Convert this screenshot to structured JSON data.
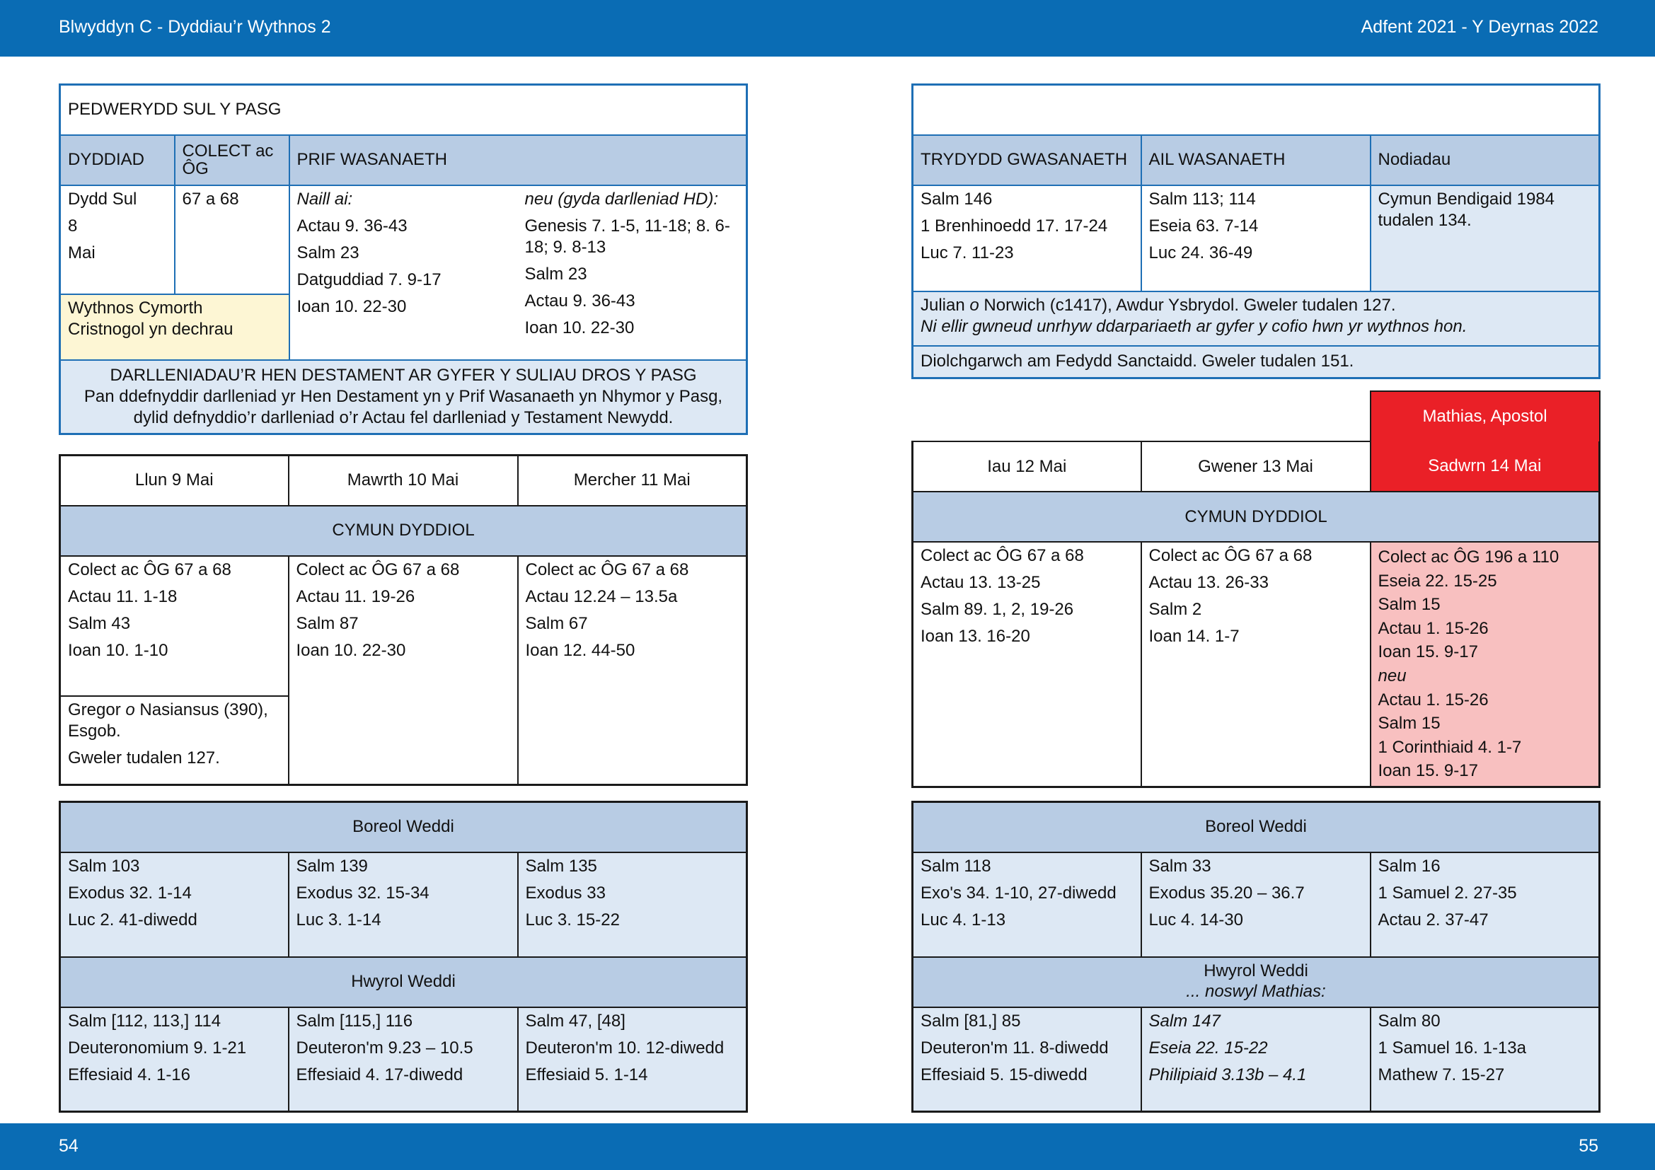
{
  "header": {
    "left": "Blwyddyn  C - Dyddiau’r Wythnos 2",
    "right": "Adfent 2021 - Y Deyrnas 2022"
  },
  "footer": {
    "left": "54",
    "right": "55"
  },
  "left": {
    "sunday": {
      "title": "PEDWERYDD SUL Y PASG",
      "col_dyddiad": "DYDDIAD",
      "col_colect": "COLECT ac ÔG",
      "col_prif": "PRIF WASANAETH",
      "date": [
        "Dydd Sul",
        "8",
        "Mai"
      ],
      "colect": "67 a 68",
      "naill_label": "Naill ai:",
      "naill": [
        "Actau 9. 36-43",
        "Salm 23",
        "Datguddiad 7. 9-17",
        "Ioan 10. 22-30"
      ],
      "neu_label": "neu (gyda darlleniad HD):",
      "neu": [
        "Genesis 7. 1-5, 11-18; 8. 6-18; 9. 8-13",
        "Salm 23",
        "Actau 9. 36-43",
        "Ioan 10. 22-30"
      ],
      "note": "Wythnos Cymorth Cristnogol yn dechrau",
      "dar_title": "DARLLENIADAU’R HEN DESTAMENT AR GYFER Y SULIAU DROS Y PASG",
      "dar_text": "Pan ddefnyddir darlleniad yr Hen Destament yn y Prif Wasanaeth yn Nhymor y Pasg, dylid defnyddio’r darlleniad o’r Actau fel darlleniad y Testament Newydd."
    },
    "week": {
      "days": [
        "Llun 9 Mai",
        "Mawrth 10 Mai",
        "Mercher 11 Mai"
      ],
      "cymun_title": "CYMUN DYDDIOL",
      "cymun": [
        [
          "Colect ac ÔG 67 a 68",
          "Actau 11. 1-18",
          "Salm 43",
          "Ioan 10. 1-10"
        ],
        [
          "Colect ac ÔG 67 a 68",
          "Actau 11. 19-26",
          "Salm 87",
          "Ioan 10. 22-30"
        ],
        [
          "Colect ac ÔG 67 a 68",
          "Actau 12.24 – 13.5a",
          "Salm 67",
          "Ioan 12. 44-50"
        ]
      ],
      "commem_pre": "Gregor ",
      "commem_o": "o",
      "commem_post": " Nasiansus (390), Esgob.",
      "commem_see": "Gweler tudalen 127."
    },
    "office": {
      "boreol_title": "Boreol Weddi",
      "boreol": [
        [
          "Salm 103",
          "Exodus 32. 1-14",
          "Luc 2. 41-diwedd"
        ],
        [
          "Salm 139",
          "Exodus 32. 15-34",
          "Luc 3. 1-14"
        ],
        [
          "Salm 135",
          "Exodus 33",
          "Luc 3. 15-22"
        ]
      ],
      "hwyrol_title": "Hwyrol Weddi",
      "hwyrol": [
        [
          "Salm [112, 113,] 114",
          "Deuteronomium 9. 1-21",
          "Effesiaid 4. 1-16"
        ],
        [
          "Salm [115,] 116",
          "Deuteron'm 9.23 – 10.5",
          "Effesiaid 4. 17-diwedd"
        ],
        [
          "Salm 47, [48]",
          "Deuteron'm 10. 12-diwedd",
          "Effesiaid 5. 1-14"
        ]
      ]
    }
  },
  "right": {
    "sunday": {
      "title": "",
      "col_trydydd": "TRYDYDD GWASANAETH",
      "col_ail": "AIL WASANAETH",
      "col_nodiadau": "Nodiadau",
      "trydydd": [
        "Salm 146",
        "1 Brenhinoedd 17. 17-24",
        "Luc 7. 11-23"
      ],
      "ail": [
        "Salm 113; 114",
        "Eseia 63. 7-14",
        "Luc 24. 36-49"
      ],
      "nodiadau": "Cymun Bendigaid 1984 tudalen 134.",
      "julian_pre": "Julian ",
      "julian_o": "o",
      "julian_post": " Norwich (c1417), Awdur Ysbrydol. Gweler tudalen 127.",
      "julian_note": "Ni ellir gwneud unrhyw ddarpariaeth ar gyfer y cofio hwn yr wythnos hon.",
      "diolch": "Diolchgarwch am Fedydd Sanctaidd. Gweler tudalen 151."
    },
    "week": {
      "feast": "Mathias, Apostol",
      "days": [
        "Iau 12 Mai",
        "Gwener 13 Mai",
        "Sadwrn 14 Mai"
      ],
      "cymun_title": "CYMUN DYDDIOL",
      "cymun": [
        [
          "Colect ac ÔG 67 a 68",
          "Actau 13. 13-25",
          "Salm 89. 1, 2, 19-26",
          "Ioan 13. 16-20"
        ],
        [
          "Colect ac ÔG 67 a 68",
          "Actau 13. 26-33",
          "Salm 2",
          "Ioan 14. 1-7"
        ]
      ],
      "sat_a": [
        "Colect ac ÔG 196 a 110",
        "Eseia 22. 15-25",
        "Salm 15",
        "Actau 1. 15-26",
        "Ioan 15. 9-17"
      ],
      "sat_neu": "neu",
      "sat_b": [
        "Actau 1. 15-26",
        "Salm 15",
        "1 Corinthiaid 4. 1-7",
        "Ioan 15. 9-17"
      ]
    },
    "office": {
      "boreol_title": "Boreol Weddi",
      "boreol": [
        [
          "Salm 118",
          "Exo's 34. 1-10, 27-diwedd",
          "Luc 4. 1-13"
        ],
        [
          "Salm 33",
          "Exodus 35.20 – 36.7",
          "Luc 4. 14-30"
        ],
        [
          "Salm 16",
          "1 Samuel 2. 27-35",
          "Actau 2. 37-47"
        ]
      ],
      "hwyrol_title": "Hwyrol Weddi",
      "hwyrol_sub": "... noswyl Mathias:",
      "hwyrol": [
        [
          "Salm [81,] 85",
          "Deuteron'm 11. 8-diwedd",
          "Effesiaid 5. 15-diwedd"
        ],
        [
          "Salm 147",
          "Eseia 22. 15-22",
          "Philipiaid 3.13b – 4.1"
        ],
        [
          "Salm 80",
          "1 Samuel 16. 1-13a",
          "Mathew 7. 15-27"
        ]
      ]
    }
  }
}
